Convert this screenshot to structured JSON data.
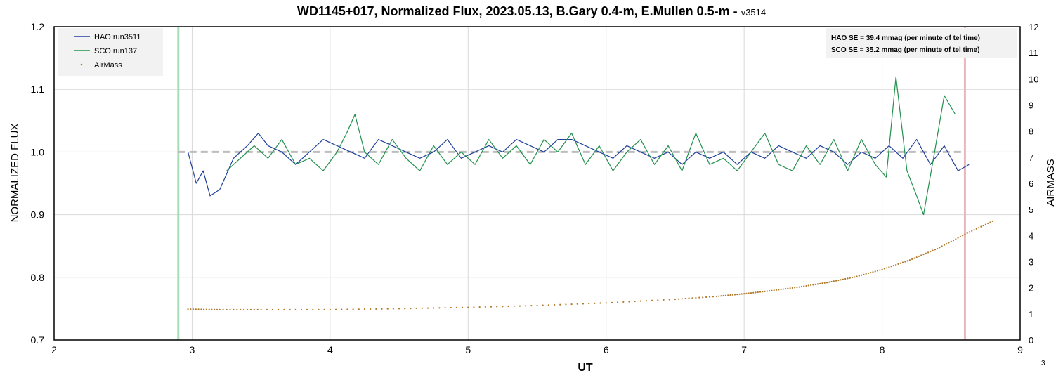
{
  "chart_data": {
    "type": "line",
    "title": "WD1145+017, Normalized Flux, 2023.05.13, B.Gary 0.4-m, E.Mullen 0.5-m -",
    "title_version": "v3514",
    "xlabel": "UT",
    "ylabel": "NORMALIZED FLUX",
    "y2label": "AIRMASS",
    "xlim": [
      2,
      9
    ],
    "ylim": [
      0.7,
      1.2
    ],
    "y2lim": [
      0,
      12
    ],
    "xticks": [
      "2",
      "3",
      "4",
      "5",
      "6",
      "7",
      "8",
      "9"
    ],
    "yticks": [
      "0.7",
      "0.8",
      "0.9",
      "1.0",
      "1.1",
      "1.2"
    ],
    "y2ticks": [
      "0",
      "1",
      "2",
      "3",
      "4",
      "5",
      "6",
      "7",
      "8",
      "9",
      "10",
      "11",
      "12"
    ],
    "grid": true,
    "legend_position": "top-left",
    "corner_note": "3",
    "stats_box": [
      "HAO SE  = 39.4 mmag (per minute of tel time)",
      "SCO SE  = 35.2 mmag (per minute of tel time)"
    ],
    "reference_line": {
      "y": 1.0,
      "color": "#bdbdbd"
    },
    "vertical_markers": [
      {
        "x": 2.9,
        "color": "#a6dfb7"
      },
      {
        "x": 8.6,
        "color": "#eab8bb"
      }
    ],
    "series": [
      {
        "name": "HAO run3511",
        "color": "#1f3f9a",
        "axis": "left",
        "x": [
          2.97,
          3.03,
          3.08,
          3.13,
          3.2,
          3.3,
          3.4,
          3.48,
          3.55,
          3.65,
          3.75,
          3.85,
          3.95,
          4.05,
          4.15,
          4.25,
          4.35,
          4.45,
          4.55,
          4.65,
          4.75,
          4.85,
          4.95,
          5.05,
          5.15,
          5.25,
          5.35,
          5.45,
          5.55,
          5.65,
          5.75,
          5.85,
          5.95,
          6.05,
          6.15,
          6.25,
          6.35,
          6.45,
          6.55,
          6.65,
          6.75,
          6.85,
          6.95,
          7.05,
          7.15,
          7.25,
          7.35,
          7.45,
          7.55,
          7.65,
          7.75,
          7.85,
          7.95,
          8.05,
          8.15,
          8.25,
          8.35,
          8.45,
          8.55,
          8.63
        ],
        "y": [
          1.0,
          0.95,
          0.97,
          0.93,
          0.94,
          0.99,
          1.01,
          1.03,
          1.01,
          1.0,
          0.98,
          1.0,
          1.02,
          1.01,
          1.0,
          0.99,
          1.02,
          1.01,
          1.0,
          0.99,
          1.0,
          1.02,
          0.99,
          1.0,
          1.01,
          1.0,
          1.02,
          1.01,
          1.0,
          1.02,
          1.02,
          1.01,
          1.0,
          0.99,
          1.01,
          1.0,
          0.99,
          1.0,
          0.98,
          1.0,
          0.99,
          1.0,
          0.98,
          1.0,
          0.99,
          1.01,
          1.0,
          0.99,
          1.01,
          1.0,
          0.98,
          1.0,
          0.99,
          1.01,
          0.99,
          1.02,
          0.98,
          1.01,
          0.97,
          0.98
        ]
      },
      {
        "name": "SCO run137",
        "color": "#21914c",
        "axis": "left",
        "x": [
          3.25,
          3.35,
          3.45,
          3.55,
          3.65,
          3.75,
          3.85,
          3.95,
          4.05,
          4.12,
          4.18,
          4.25,
          4.35,
          4.45,
          4.55,
          4.65,
          4.75,
          4.85,
          4.95,
          5.05,
          5.15,
          5.25,
          5.35,
          5.45,
          5.55,
          5.65,
          5.75,
          5.85,
          5.95,
          6.05,
          6.15,
          6.25,
          6.35,
          6.45,
          6.55,
          6.65,
          6.75,
          6.85,
          6.95,
          7.05,
          7.15,
          7.25,
          7.35,
          7.45,
          7.55,
          7.65,
          7.75,
          7.85,
          7.95,
          8.03,
          8.1,
          8.18,
          8.25,
          8.3,
          8.38,
          8.45,
          8.53
        ],
        "y": [
          0.97,
          0.99,
          1.01,
          0.99,
          1.02,
          0.98,
          0.99,
          0.97,
          1.0,
          1.03,
          1.06,
          1.0,
          0.98,
          1.02,
          0.99,
          0.97,
          1.01,
          0.98,
          1.0,
          0.98,
          1.02,
          0.99,
          1.01,
          0.98,
          1.02,
          1.0,
          1.03,
          0.98,
          1.01,
          0.97,
          1.0,
          1.02,
          0.98,
          1.01,
          0.97,
          1.03,
          0.98,
          0.99,
          0.97,
          1.0,
          1.03,
          0.98,
          0.97,
          1.01,
          0.98,
          1.02,
          0.97,
          1.02,
          0.98,
          0.96,
          1.12,
          0.97,
          0.93,
          0.9,
          1.0,
          1.09,
          1.06
        ]
      },
      {
        "name": "AirMass",
        "color": "#b07a2a",
        "axis": "right",
        "style": "dotted",
        "x": [
          2.97,
          3.2,
          3.5,
          4.0,
          4.5,
          5.0,
          5.5,
          6.0,
          6.5,
          6.8,
          7.0,
          7.2,
          7.4,
          7.6,
          7.8,
          8.0,
          8.2,
          8.4,
          8.6,
          8.8
        ],
        "y": [
          1.18,
          1.16,
          1.16,
          1.16,
          1.2,
          1.25,
          1.32,
          1.42,
          1.56,
          1.67,
          1.77,
          1.89,
          2.03,
          2.2,
          2.41,
          2.7,
          3.06,
          3.5,
          4.05,
          4.55
        ]
      }
    ]
  }
}
